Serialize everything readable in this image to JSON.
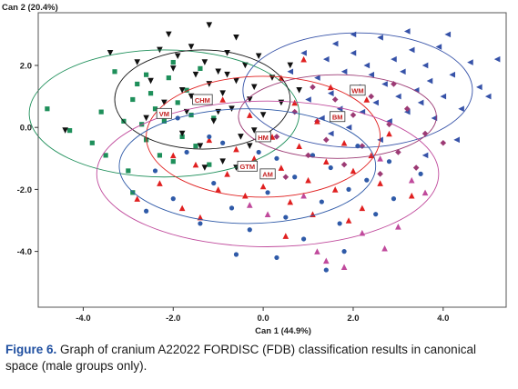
{
  "chart_data": {
    "type": "scatter",
    "title": "",
    "xlabel": "Can 1 (44.9%)",
    "ylabel": "Can 2 (20.4%)",
    "xlim": [
      -5.0,
      5.4
    ],
    "ylim": [
      -5.8,
      3.7
    ],
    "xticks": [
      -4.0,
      -2.0,
      0.0,
      2.0,
      4.0
    ],
    "yticks": [
      2.0,
      0.0,
      -2.0,
      -4.0
    ],
    "xtick_labels": [
      "-4.0",
      "-2.0",
      "0.0",
      "2.0",
      "4.0"
    ],
    "ytick_labels": [
      "2.0",
      "0.0",
      "-2.0",
      "-4.0"
    ],
    "grid": false,
    "series": [
      {
        "group": "VM",
        "centroid": [
          -2.2,
          0.45
        ],
        "ellipse_radii": [
          3.0,
          2.05
        ],
        "color": "#1e8f5a",
        "marker": "square",
        "points": [
          [
            -4.8,
            0.6
          ],
          [
            -4.3,
            -0.1
          ],
          [
            -3.6,
            0.5
          ],
          [
            -3.5,
            -0.9
          ],
          [
            -3.1,
            0.2
          ],
          [
            -3.0,
            -1.4
          ],
          [
            -2.9,
            0.9
          ],
          [
            -2.8,
            1.4
          ],
          [
            -2.7,
            0.1
          ],
          [
            -2.6,
            -0.4
          ],
          [
            -2.5,
            1.1
          ],
          [
            -2.4,
            0.6
          ],
          [
            -2.3,
            -0.9
          ],
          [
            -2.2,
            0.2
          ],
          [
            -2.1,
            1.6
          ],
          [
            -2.0,
            -1.1
          ],
          [
            -1.9,
            0.8
          ],
          [
            -1.8,
            -0.3
          ],
          [
            -1.7,
            1.2
          ],
          [
            -1.6,
            0.4
          ],
          [
            -1.5,
            -0.6
          ],
          [
            -1.4,
            1.9
          ],
          [
            -1.3,
            0.9
          ],
          [
            -1.2,
            -1.2
          ],
          [
            -2.9,
            -2.1
          ],
          [
            -3.3,
            1.8
          ],
          [
            -2.6,
            1.7
          ],
          [
            -3.8,
            -0.5
          ],
          [
            -2.0,
            2.1
          ],
          [
            -1.1,
            0.3
          ]
        ]
      },
      {
        "group": "CHM",
        "centroid": [
          -1.35,
          0.9
        ],
        "ellipse_radii": [
          1.95,
          1.6
        ],
        "color": "#111111",
        "marker": "triangle-down",
        "points": [
          [
            -4.4,
            -0.1
          ],
          [
            -3.4,
            2.4
          ],
          [
            -2.8,
            2.1
          ],
          [
            -2.5,
            1.5
          ],
          [
            -2.3,
            2.5
          ],
          [
            -2.2,
            0.8
          ],
          [
            -2.0,
            1.9
          ],
          [
            -1.9,
            2.3
          ],
          [
            -1.8,
            1.2
          ],
          [
            -1.7,
            0.5
          ],
          [
            -1.6,
            2.6
          ],
          [
            -1.5,
            1.7
          ],
          [
            -1.4,
            0.9
          ],
          [
            -1.3,
            2.1
          ],
          [
            -1.2,
            1.4
          ],
          [
            -1.1,
            0.2
          ],
          [
            -1.0,
            1.8
          ],
          [
            -0.9,
            1.1
          ],
          [
            -0.8,
            2.4
          ],
          [
            -0.7,
            0.6
          ],
          [
            -0.6,
            1.5
          ],
          [
            -0.5,
            -0.3
          ],
          [
            -0.4,
            2.0
          ],
          [
            -0.3,
            0.9
          ],
          [
            -0.2,
            1.3
          ],
          [
            -0.1,
            2.3
          ],
          [
            0.0,
            0.4
          ],
          [
            0.2,
            1.6
          ],
          [
            0.4,
            0.8
          ],
          [
            0.6,
            2.0
          ],
          [
            -2.1,
            3.0
          ],
          [
            -1.4,
            -0.6
          ],
          [
            -0.9,
            -1.1
          ],
          [
            -0.3,
            -0.6
          ],
          [
            -1.8,
            -0.2
          ],
          [
            -2.6,
            0.3
          ],
          [
            -1.2,
            3.3
          ],
          [
            -0.6,
            2.9
          ],
          [
            0.8,
            1.2
          ],
          [
            -1.0,
            0.5
          ],
          [
            -1.6,
            1.0
          ],
          [
            -0.8,
            1.7
          ],
          [
            -0.2,
            -0.1
          ],
          [
            -1.3,
            -1.3
          ],
          [
            -0.6,
            -1.3
          ]
        ]
      },
      {
        "group": "WM",
        "centroid": [
          2.1,
          1.2
        ],
        "ellipse_radii": [
          2.55,
          1.85
        ],
        "color": "#3652a8",
        "marker": "triangle-left",
        "points": [
          [
            0.6,
            1.8
          ],
          [
            0.9,
            2.4
          ],
          [
            1.0,
            0.9
          ],
          [
            1.2,
            1.6
          ],
          [
            1.3,
            0.3
          ],
          [
            1.4,
            2.2
          ],
          [
            1.5,
            1.1
          ],
          [
            1.6,
            2.7
          ],
          [
            1.7,
            0.6
          ],
          [
            1.8,
            1.8
          ],
          [
            1.9,
            0.0
          ],
          [
            2.0,
            2.4
          ],
          [
            2.1,
            1.3
          ],
          [
            2.2,
            0.5
          ],
          [
            2.3,
            2.0
          ],
          [
            2.4,
            1.7
          ],
          [
            2.5,
            0.8
          ],
          [
            2.6,
            2.9
          ],
          [
            2.7,
            1.4
          ],
          [
            2.8,
            0.2
          ],
          [
            2.9,
            2.2
          ],
          [
            3.0,
            1.0
          ],
          [
            3.1,
            1.8
          ],
          [
            3.2,
            0.5
          ],
          [
            3.3,
            2.5
          ],
          [
            3.4,
            1.2
          ],
          [
            3.5,
            0.8
          ],
          [
            3.6,
            2.0
          ],
          [
            3.7,
            1.5
          ],
          [
            3.8,
            0.3
          ],
          [
            3.9,
            2.6
          ],
          [
            4.0,
            1.0
          ],
          [
            4.2,
            1.7
          ],
          [
            4.4,
            0.6
          ],
          [
            4.6,
            2.1
          ],
          [
            4.8,
            1.3
          ],
          [
            5.2,
            2.2
          ],
          [
            5.0,
            1.0
          ],
          [
            4.1,
            3.0
          ],
          [
            3.2,
            3.1
          ],
          [
            2.6,
            -0.4
          ],
          [
            4.3,
            -0.4
          ],
          [
            2.0,
            3.0
          ],
          [
            1.5,
            -0.2
          ],
          [
            3.6,
            -0.9
          ]
        ]
      },
      {
        "group": "BM",
        "centroid": [
          1.65,
          0.35
        ],
        "ellipse_radii": [
          2.2,
          1.35
        ],
        "color": "#9c3a74",
        "marker": "diamond",
        "points": [
          [
            0.3,
            -0.3
          ],
          [
            0.7,
            0.5
          ],
          [
            1.0,
            -0.9
          ],
          [
            1.2,
            0.2
          ],
          [
            1.4,
            -0.4
          ],
          [
            1.6,
            0.9
          ],
          [
            1.8,
            -1.2
          ],
          [
            2.0,
            0.4
          ],
          [
            2.2,
            -0.6
          ],
          [
            2.4,
            1.0
          ],
          [
            2.6,
            -1.5
          ],
          [
            2.8,
            0.1
          ],
          [
            3.0,
            -0.8
          ],
          [
            3.2,
            0.6
          ],
          [
            3.4,
            -1.3
          ],
          [
            3.6,
            -0.2
          ],
          [
            4.0,
            -0.5
          ],
          [
            1.1,
            1.3
          ],
          [
            2.9,
            1.4
          ],
          [
            0.5,
            -1.6
          ]
        ]
      },
      {
        "group": "HM",
        "centroid": [
          0.0,
          -0.3
        ],
        "ellipse_radii": [
          2.6,
          1.95
        ],
        "color": "#e02020",
        "marker": "triangle-up",
        "points": [
          [
            -2.3,
            -1.8
          ],
          [
            -2.0,
            -0.9
          ],
          [
            -1.8,
            -2.6
          ],
          [
            -1.5,
            -1.2
          ],
          [
            -1.2,
            -0.4
          ],
          [
            -1.0,
            -2.0
          ],
          [
            -0.8,
            -1.5
          ],
          [
            -0.6,
            -0.7
          ],
          [
            -0.4,
            -2.2
          ],
          [
            -0.2,
            -1.0
          ],
          [
            0.0,
            -1.9
          ],
          [
            0.2,
            -0.3
          ],
          [
            0.4,
            -1.3
          ],
          [
            0.6,
            -2.4
          ],
          [
            0.8,
            -0.6
          ],
          [
            1.0,
            -1.7
          ],
          [
            1.2,
            0.2
          ],
          [
            1.4,
            -1.1
          ],
          [
            1.6,
            -2.0
          ],
          [
            1.8,
            -0.5
          ],
          [
            2.0,
            -1.4
          ],
          [
            2.2,
            -2.6
          ],
          [
            2.4,
            -0.9
          ],
          [
            2.6,
            -1.8
          ],
          [
            0.9,
            2.2
          ],
          [
            0.4,
            1.6
          ],
          [
            1.5,
            1.3
          ],
          [
            -0.3,
            0.4
          ],
          [
            0.7,
            0.8
          ],
          [
            2.8,
            -0.2
          ],
          [
            -1.4,
            -2.9
          ],
          [
            0.5,
            -3.5
          ],
          [
            1.9,
            -3.0
          ],
          [
            -0.9,
            0.9
          ],
          [
            3.3,
            -2.2
          ],
          [
            2.3,
            0.9
          ],
          [
            -2.8,
            -2.3
          ],
          [
            1.1,
            -2.8
          ]
        ]
      },
      {
        "group": "GTM",
        "centroid": [
          -0.35,
          -1.25
        ],
        "ellipse_radii": [
          2.85,
          1.85
        ],
        "color": "#2f5aa8",
        "marker": "circle",
        "points": [
          [
            -2.4,
            -1.4
          ],
          [
            -2.0,
            -2.3
          ],
          [
            -1.7,
            -0.8
          ],
          [
            -1.4,
            -3.1
          ],
          [
            -1.1,
            -1.8
          ],
          [
            -0.9,
            -0.5
          ],
          [
            -0.7,
            -2.6
          ],
          [
            -0.5,
            -1.3
          ],
          [
            -0.3,
            -3.3
          ],
          [
            -0.1,
            -0.8
          ],
          [
            0.1,
            -2.1
          ],
          [
            0.3,
            -1.0
          ],
          [
            0.5,
            -2.9
          ],
          [
            0.7,
            -1.6
          ],
          [
            0.9,
            -3.6
          ],
          [
            1.1,
            -0.9
          ],
          [
            1.3,
            -2.4
          ],
          [
            1.5,
            -1.3
          ],
          [
            1.7,
            -3.1
          ],
          [
            1.9,
            -2.0
          ],
          [
            2.1,
            -0.6
          ],
          [
            2.3,
            -1.7
          ],
          [
            2.5,
            -2.8
          ],
          [
            2.8,
            -1.1
          ],
          [
            -1.9,
            0.3
          ],
          [
            -0.6,
            -4.1
          ],
          [
            0.3,
            -4.2
          ],
          [
            1.8,
            -4.0
          ],
          [
            -1.2,
            -0.3
          ],
          [
            2.9,
            -2.3
          ],
          [
            3.5,
            -1.5
          ],
          [
            -2.6,
            -2.7
          ],
          [
            1.4,
            -4.6
          ]
        ]
      },
      {
        "group": "AM",
        "centroid": [
          0.1,
          -1.5
        ],
        "ellipse_radii": [
          3.8,
          2.35
        ],
        "color": "#c04a9c",
        "marker": "triangle-up",
        "points": [
          [
            0.1,
            -2.8
          ],
          [
            1.2,
            -4.0
          ],
          [
            1.4,
            -4.3
          ],
          [
            2.2,
            -3.4
          ],
          [
            3.0,
            -3.2
          ],
          [
            3.6,
            -2.1
          ],
          [
            -0.3,
            -2.5
          ],
          [
            0.9,
            -2.2
          ],
          [
            1.8,
            -4.5
          ],
          [
            2.6,
            -1.0
          ],
          [
            3.3,
            -1.7
          ],
          [
            2.7,
            -3.9
          ]
        ]
      }
    ],
    "centroid_label_color": "#c41e1e"
  },
  "caption": {
    "label": "Figure 6.",
    "text": " Graph of cranium A22022 FORDISC (FDB) classification results in canonical space (male groups only)."
  }
}
